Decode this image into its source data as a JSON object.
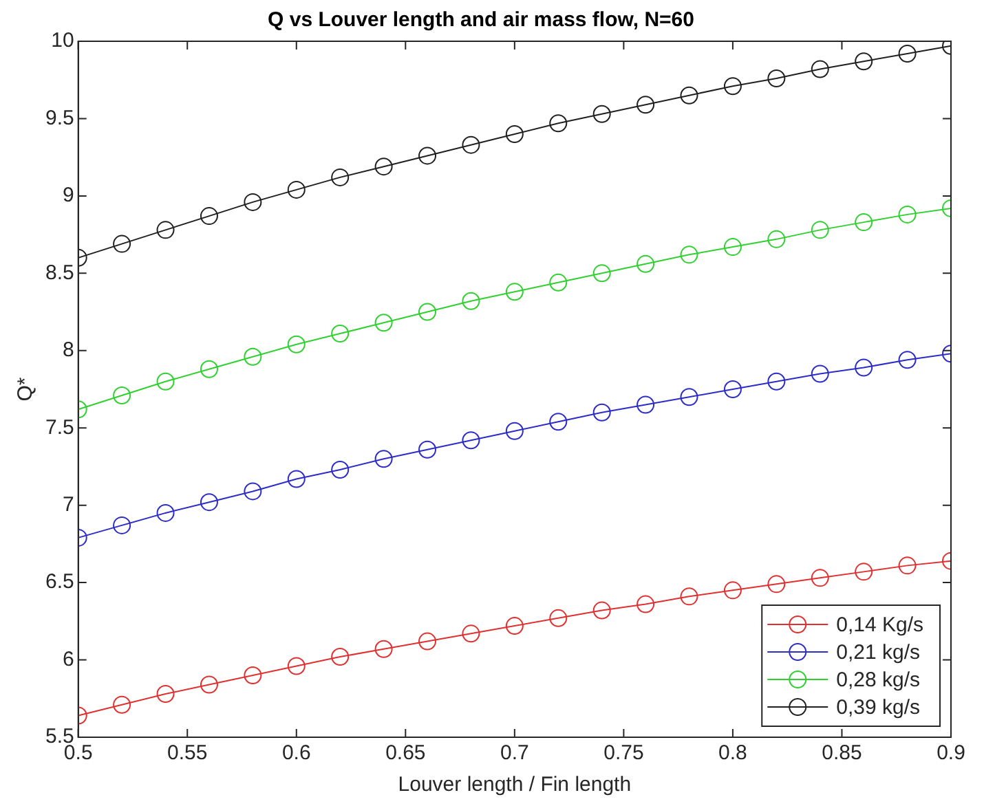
{
  "chart_data": {
    "type": "line",
    "title": "Q vs Louver length and air mass flow, N=60",
    "xlabel": "Louver length / Fin length",
    "ylabel": "Q*",
    "x": [
      0.5,
      0.52,
      0.54,
      0.56,
      0.58,
      0.6,
      0.62,
      0.64,
      0.66,
      0.68,
      0.7,
      0.72,
      0.74,
      0.76,
      0.78,
      0.8,
      0.82,
      0.84,
      0.86,
      0.88,
      0.9
    ],
    "series": [
      {
        "name": "0,14 Kg/s",
        "color": "#e03030",
        "values": [
          5.64,
          5.71,
          5.78,
          5.84,
          5.9,
          5.96,
          6.02,
          6.07,
          6.12,
          6.17,
          6.22,
          6.27,
          6.32,
          6.36,
          6.41,
          6.45,
          6.49,
          6.53,
          6.57,
          6.61,
          6.64
        ]
      },
      {
        "name": "0,21 kg/s",
        "color": "#2c2cc8",
        "values": [
          6.79,
          6.87,
          6.95,
          7.02,
          7.09,
          7.17,
          7.23,
          7.3,
          7.36,
          7.42,
          7.48,
          7.54,
          7.6,
          7.65,
          7.7,
          7.75,
          7.8,
          7.85,
          7.89,
          7.94,
          7.98
        ]
      },
      {
        "name": "0,28 kg/s",
        "color": "#30d030",
        "values": [
          7.62,
          7.71,
          7.8,
          7.88,
          7.96,
          8.04,
          8.11,
          8.18,
          8.25,
          8.32,
          8.38,
          8.44,
          8.5,
          8.56,
          8.62,
          8.67,
          8.72,
          8.78,
          8.83,
          8.88,
          8.92
        ]
      },
      {
        "name": "0,39 kg/s",
        "color": "#202020",
        "values": [
          8.6,
          8.69,
          8.78,
          8.87,
          8.96,
          9.04,
          9.12,
          9.19,
          9.26,
          9.33,
          9.4,
          9.47,
          9.53,
          9.59,
          9.65,
          9.71,
          9.76,
          9.82,
          9.87,
          9.92,
          9.97
        ]
      }
    ],
    "xlim": [
      0.5,
      0.9
    ],
    "xticks": [
      0.5,
      0.55,
      0.6,
      0.65,
      0.7,
      0.75,
      0.8,
      0.85,
      0.9
    ],
    "ylim": [
      5.5,
      10
    ],
    "yticks": [
      5.5,
      6,
      6.5,
      7,
      7.5,
      8,
      8.5,
      9,
      9.5,
      10
    ],
    "grid": false,
    "legend": "bottom right",
    "marker": "circle",
    "line_style": "solid"
  }
}
